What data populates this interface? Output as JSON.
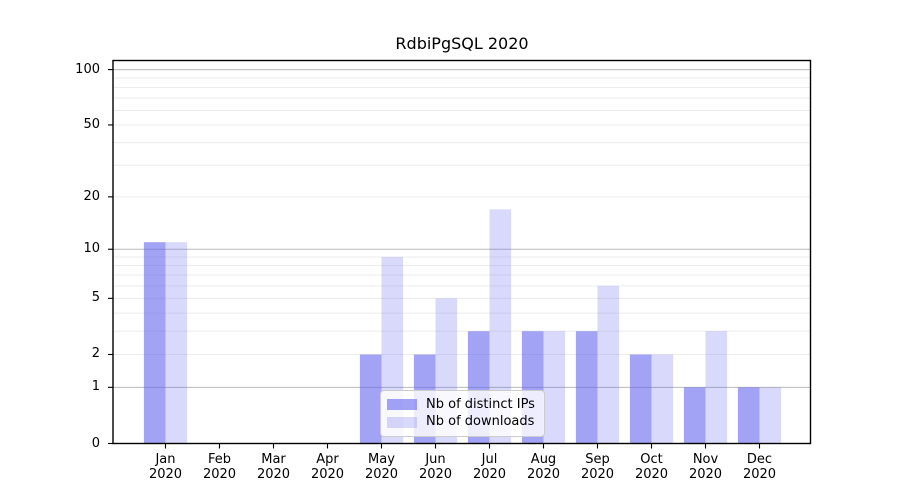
{
  "chart_data": {
    "type": "bar",
    "title": "RdbiPgSQL 2020",
    "categories": [
      "Jan 2020",
      "Feb 2020",
      "Mar 2020",
      "Apr 2020",
      "May 2020",
      "Jun 2020",
      "Jul 2020",
      "Aug 2020",
      "Sep 2020",
      "Oct 2020",
      "Nov 2020",
      "Dec 2020"
    ],
    "series": [
      {
        "name": "Nb of distinct IPs",
        "color": "#6666ee",
        "alpha": 0.6,
        "values": [
          11,
          0,
          0,
          0,
          2,
          2,
          3,
          3,
          3,
          2,
          1,
          1
        ]
      },
      {
        "name": "Nb of downloads",
        "color": "#6666ee",
        "alpha": 0.25,
        "values": [
          11,
          0,
          0,
          0,
          9,
          5,
          17,
          3,
          6,
          2,
          3,
          1
        ]
      }
    ],
    "y_axis": {
      "scale": "log1p",
      "ticks": [
        0,
        1,
        2,
        5,
        10,
        20,
        50,
        100
      ],
      "tick_labels": [
        "0",
        "1",
        "2",
        "5",
        "10",
        "20",
        "50",
        "100"
      ],
      "minor_gridlines": [
        3,
        4,
        6,
        7,
        8,
        9,
        30,
        40,
        60,
        70,
        80,
        90
      ],
      "major_gridlines": [
        1,
        10,
        100
      ],
      "ymax": 112
    },
    "legend": {
      "position": "lower center",
      "entries": [
        "Nb of distinct IPs",
        "Nb of downloads"
      ]
    },
    "style": {
      "spine_color": "#000000",
      "major_grid_color": "#b9b9b9",
      "minor_grid_color": "#ececec",
      "background": "#ffffff"
    }
  }
}
